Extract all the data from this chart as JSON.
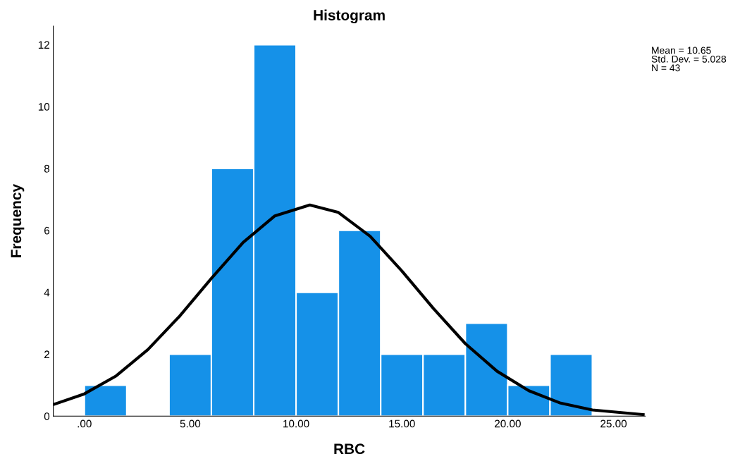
{
  "chart_data": {
    "type": "histogram",
    "title": "Histogram",
    "xlabel": "RBC",
    "ylabel": "Frequency",
    "bins": [
      0,
      2,
      4,
      6,
      8,
      10,
      12,
      14,
      16,
      18,
      20,
      22,
      24
    ],
    "values": [
      1,
      0,
      2,
      8,
      12,
      4,
      6,
      2,
      2,
      3,
      1,
      2
    ],
    "color": "#1591e8",
    "series": [
      {
        "type": "line",
        "color": "#000000",
        "x": [
          -1.4,
          0,
          1.5,
          3,
          4.5,
          6,
          7.5,
          9,
          10.65,
          12,
          13.5,
          15,
          16.5,
          18,
          19.5,
          21,
          22.5,
          24,
          26.4
        ],
        "values": [
          0.39,
          0.72,
          1.3,
          2.15,
          3.23,
          4.45,
          5.61,
          6.47,
          6.82,
          6.58,
          5.81,
          4.69,
          3.47,
          2.34,
          1.45,
          0.82,
          0.42,
          0.2,
          0.05
        ]
      }
    ],
    "xlim": [
      -1.47,
      26.5
    ],
    "ylim": [
      0,
      12.6
    ],
    "xticks": [
      {
        "value": 0,
        "label": ".00"
      },
      {
        "value": 5,
        "label": "5.00"
      },
      {
        "value": 10,
        "label": "10.00"
      },
      {
        "value": 15,
        "label": "15.00"
      },
      {
        "value": 20,
        "label": "20.00"
      },
      {
        "value": 25,
        "label": "25.00"
      }
    ],
    "yticks": [
      0,
      2,
      4,
      6,
      8,
      10,
      12
    ],
    "annotations": [
      "Mean = 10.65\nStd. Dev. = 5.028\nN = 43"
    ],
    "grid": false,
    "legend": false
  }
}
